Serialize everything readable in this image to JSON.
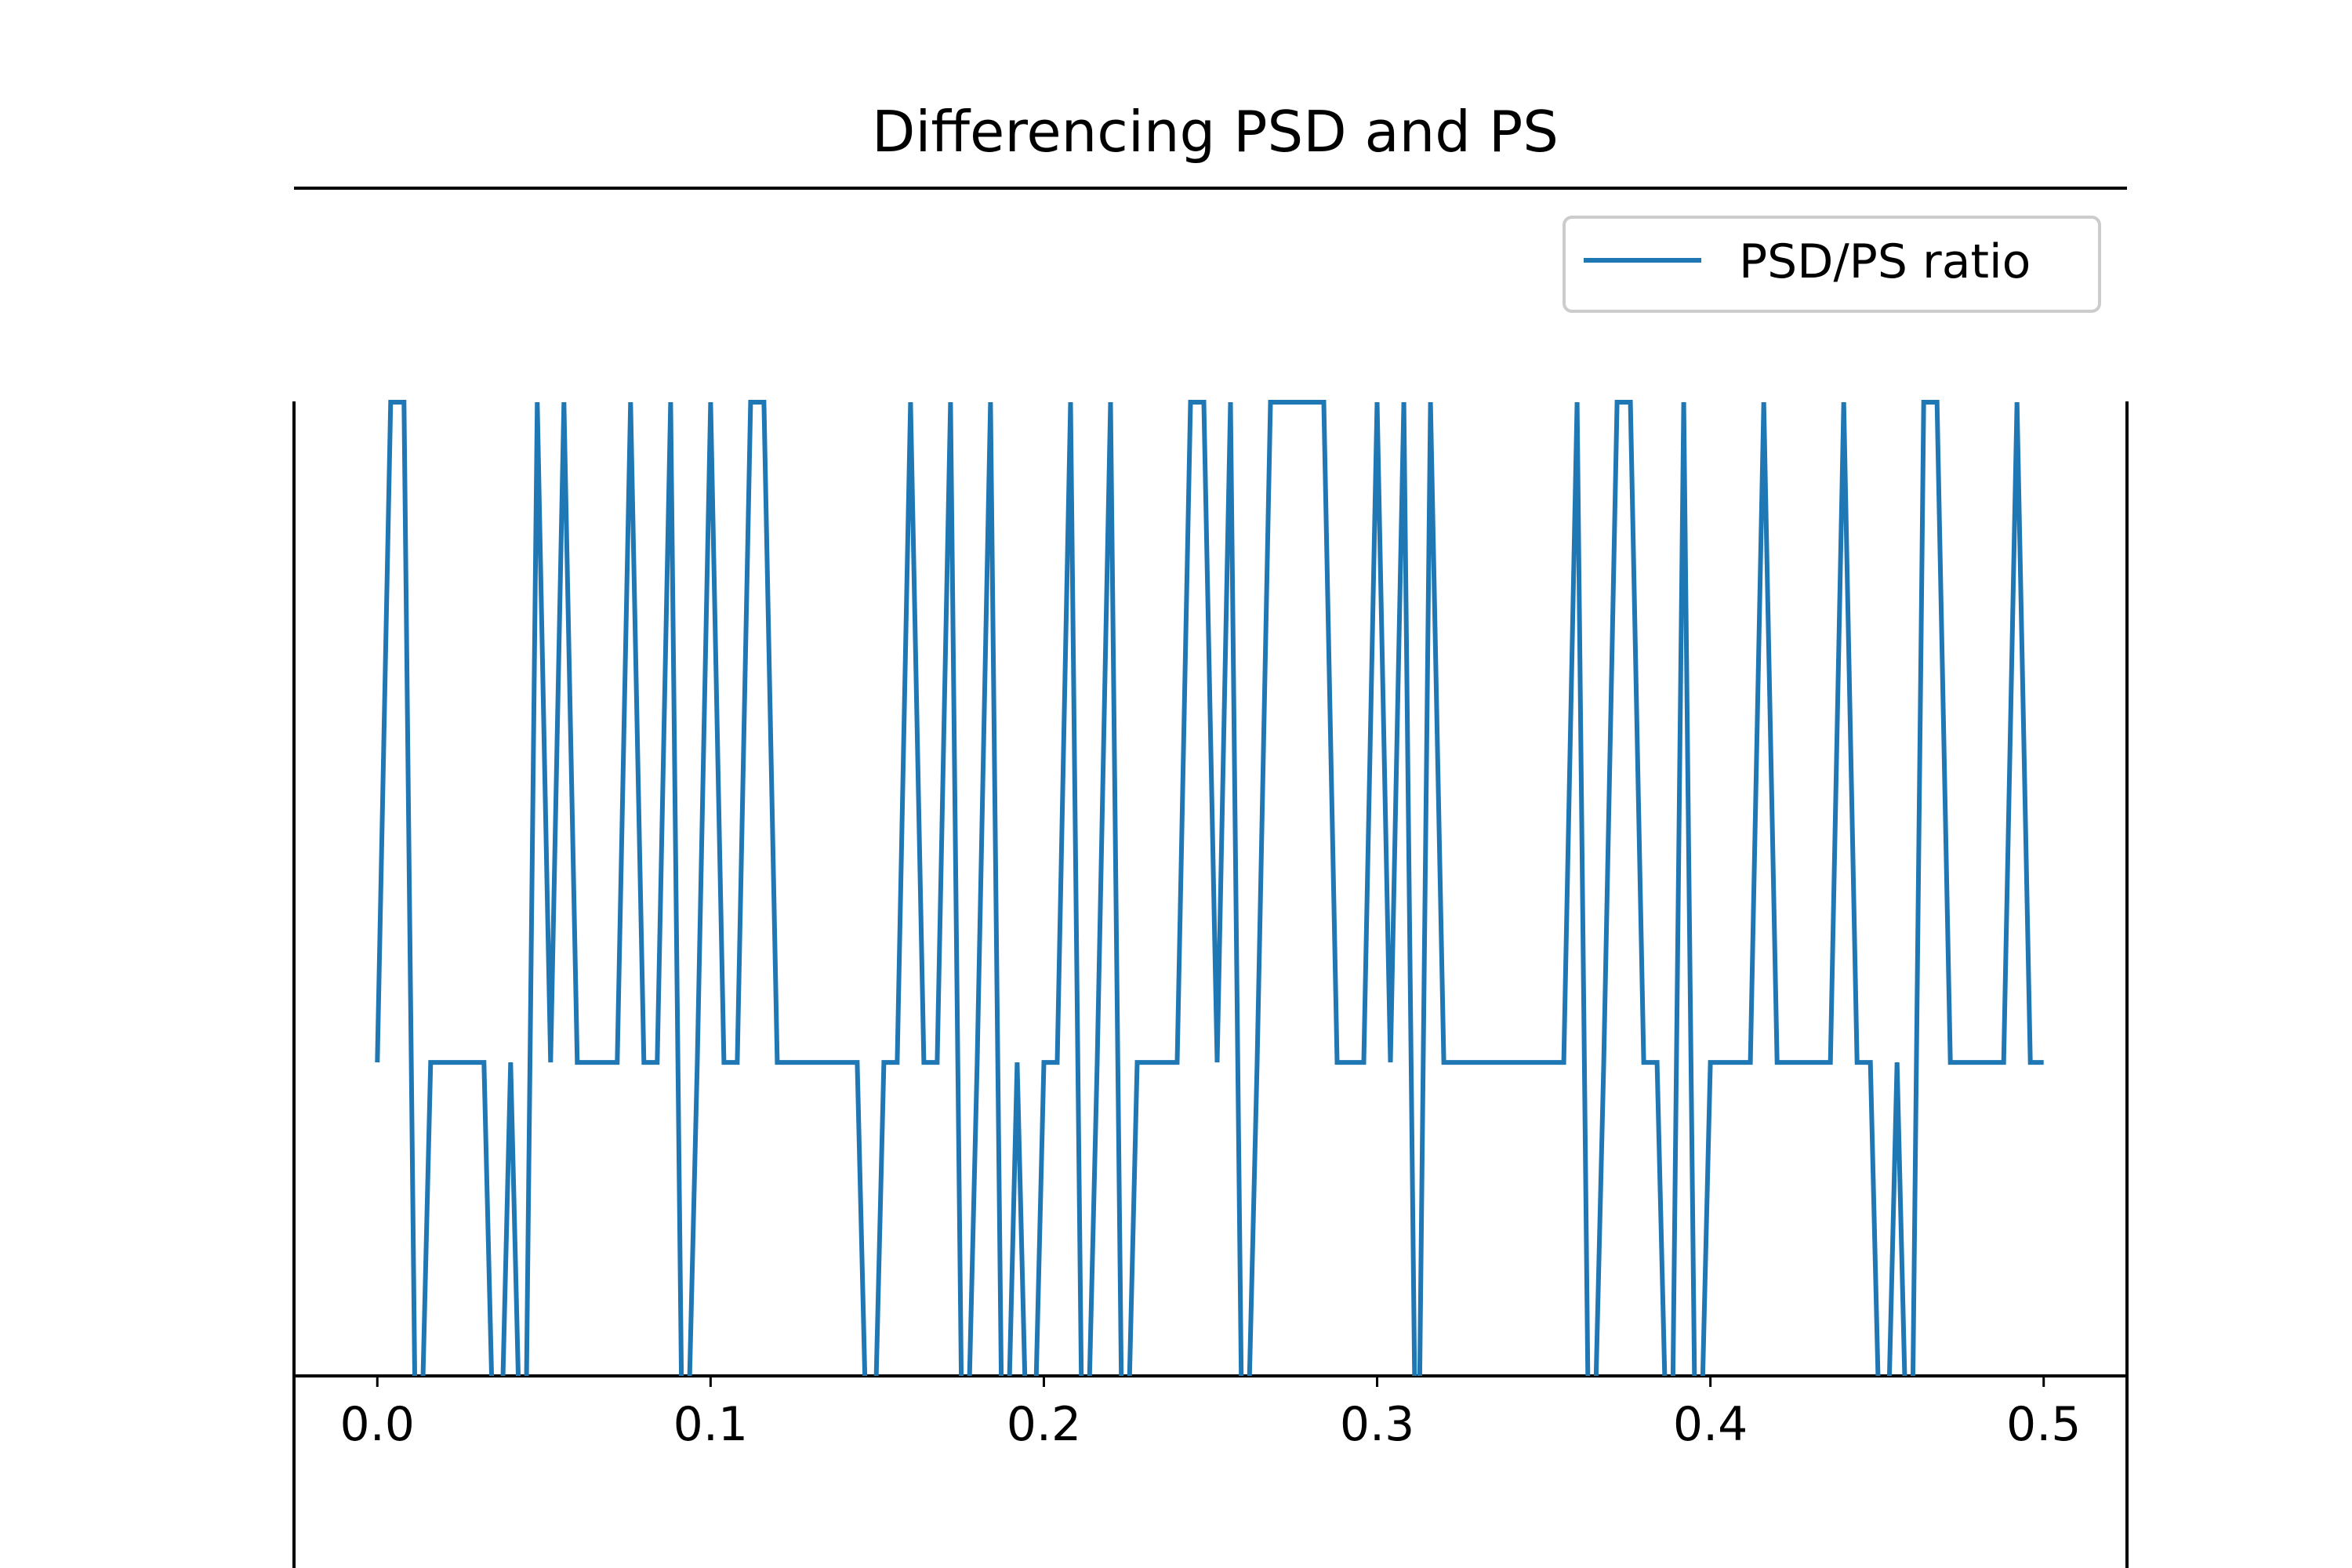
{
  "chart_data": {
    "type": "line",
    "title": "Differencing PSD and PS",
    "xlabel": "",
    "ylabel": "",
    "xlim": [
      -0.025,
      0.525
    ],
    "x_ticks": [
      0.0,
      0.1,
      0.2,
      0.3,
      0.4,
      0.5
    ],
    "x_tick_labels": [
      "0.0",
      "0.1",
      "0.2",
      "0.3",
      "0.4",
      "0.5"
    ],
    "y_level_note": "y values as fraction of upper visible band (1 = top plateau, 0 = lower visible edge)",
    "grid": false,
    "legend_position": "top-right",
    "series": [
      {
        "name": "PSD/PS ratio",
        "color": "#1f77b4",
        "x": [
          0.0,
          0.004,
          0.008,
          0.012,
          0.016,
          0.02,
          0.024,
          0.028,
          0.032,
          0.036,
          0.04,
          0.044,
          0.048,
          0.052,
          0.056,
          0.06,
          0.064,
          0.068,
          0.072,
          0.076,
          0.08,
          0.084,
          0.088,
          0.092,
          0.096,
          0.1,
          0.104,
          0.108,
          0.112,
          0.116,
          0.12,
          0.124,
          0.128,
          0.132,
          0.136,
          0.14,
          0.144,
          0.148,
          0.152,
          0.156,
          0.16,
          0.164,
          0.168,
          0.172,
          0.176,
          0.18,
          0.184,
          0.188,
          0.192,
          0.196,
          0.2,
          0.204,
          0.208,
          0.212,
          0.216,
          0.22,
          0.224,
          0.228,
          0.232,
          0.236,
          0.24,
          0.244,
          0.248,
          0.252,
          0.256,
          0.26,
          0.264,
          0.268,
          0.272,
          0.276,
          0.28,
          0.284,
          0.288,
          0.292,
          0.296,
          0.3,
          0.304,
          0.308,
          0.312,
          0.316,
          0.32,
          0.324,
          0.328,
          0.332,
          0.336,
          0.34,
          0.344,
          0.348,
          0.352,
          0.356,
          0.36,
          0.364,
          0.368,
          0.372,
          0.376,
          0.38,
          0.384,
          0.388,
          0.392,
          0.396,
          0.4,
          0.404,
          0.408,
          0.412,
          0.416,
          0.42,
          0.424,
          0.428,
          0.432,
          0.436,
          0.44,
          0.444,
          0.448,
          0.452,
          0.456,
          0.46,
          0.464,
          0.468,
          0.472,
          0.476,
          0.48,
          0.484,
          0.488,
          0.492,
          0.496,
          0.5
        ],
        "y": [
          0.18,
          1.0,
          1.0,
          -0.5,
          0.18,
          0.18,
          0.18,
          0.18,
          0.18,
          -0.5,
          0.18,
          -0.5,
          1.0,
          0.18,
          1.0,
          0.18,
          0.18,
          0.18,
          0.18,
          1.0,
          0.18,
          0.18,
          1.0,
          -0.5,
          0.18,
          1.0,
          0.18,
          0.18,
          1.0,
          1.0,
          0.18,
          0.18,
          0.18,
          0.18,
          0.18,
          0.18,
          0.18,
          -0.5,
          0.18,
          0.18,
          1.0,
          0.18,
          0.18,
          1.0,
          -0.5,
          0.18,
          1.0,
          -0.5,
          0.18,
          -0.5,
          0.18,
          0.18,
          1.0,
          -0.5,
          0.18,
          1.0,
          -0.5,
          0.18,
          0.18,
          0.18,
          0.18,
          1.0,
          1.0,
          0.18,
          1.0,
          -0.5,
          0.18,
          1.0,
          1.0,
          1.0,
          1.0,
          1.0,
          0.18,
          0.18,
          0.18,
          1.0,
          0.18,
          1.0,
          -0.5,
          1.0,
          0.18,
          0.18,
          0.18,
          0.18,
          0.18,
          0.18,
          0.18,
          0.18,
          0.18,
          0.18,
          1.0,
          -0.5,
          0.18,
          1.0,
          1.0,
          0.18,
          0.18,
          -0.5,
          1.0,
          -0.5,
          0.18,
          0.18,
          0.18,
          0.18,
          1.0,
          0.18,
          0.18,
          0.18,
          0.18,
          0.18,
          1.0,
          0.18,
          0.18,
          -0.5,
          0.18,
          -0.5,
          1.0,
          1.0,
          0.18,
          0.18,
          0.18,
          0.18,
          0.18,
          1.0,
          0.18,
          0.18
        ]
      }
    ]
  }
}
